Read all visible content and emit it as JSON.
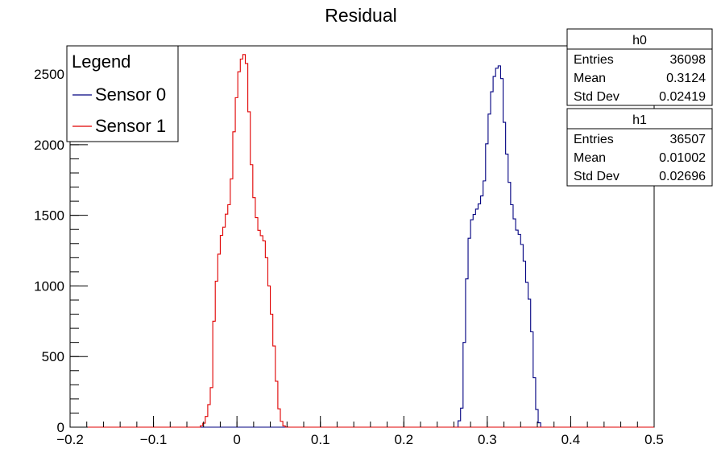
{
  "chart_data": {
    "type": "histogram",
    "title": "Residual",
    "xlabel": "",
    "ylabel": "",
    "xlim": [
      -0.2,
      0.5
    ],
    "ylim": [
      0,
      2700
    ],
    "x_ticks": [
      "−0.2",
      "−0.1",
      "0",
      "0.1",
      "0.2",
      "0.3",
      "0.4",
      "0.5"
    ],
    "y_ticks": [
      "0",
      "500",
      "1000",
      "1500",
      "2000",
      "2500"
    ],
    "grid": false,
    "legend": {
      "title": "Legend",
      "position": "top-left",
      "entries": [
        {
          "label": "Sensor 0",
          "color": "#000080"
        },
        {
          "label": "Sensor 1",
          "color": "#e00000"
        }
      ]
    },
    "series": [
      {
        "name": "h0",
        "color": "#000080",
        "peaks": [
          [
            0.265,
            0
          ],
          [
            0.27,
            150
          ],
          [
            0.272,
            500
          ],
          [
            0.274,
            900
          ],
          [
            0.276,
            1100
          ],
          [
            0.278,
            1300
          ],
          [
            0.28,
            1450
          ],
          [
            0.284,
            1500
          ],
          [
            0.288,
            1550
          ],
          [
            0.292,
            1600
          ],
          [
            0.296,
            1700
          ],
          [
            0.3,
            2050
          ],
          [
            0.303,
            2250
          ],
          [
            0.306,
            2400
          ],
          [
            0.309,
            2500
          ],
          [
            0.312,
            2550
          ],
          [
            0.315,
            2560
          ],
          [
            0.318,
            2450
          ],
          [
            0.321,
            2100
          ],
          [
            0.324,
            1900
          ],
          [
            0.327,
            1700
          ],
          [
            0.33,
            1550
          ],
          [
            0.335,
            1400
          ],
          [
            0.34,
            1350
          ],
          [
            0.344,
            1200
          ],
          [
            0.348,
            1000
          ],
          [
            0.352,
            850
          ],
          [
            0.355,
            500
          ],
          [
            0.358,
            200
          ],
          [
            0.361,
            50
          ],
          [
            0.365,
            0
          ]
        ],
        "stats": {
          "box_title": "h0",
          "entries": "36098",
          "mean": "0.3124",
          "std_dev": "0.02419"
        }
      },
      {
        "name": "h1",
        "color": "#e00000",
        "peaks": [
          [
            -0.045,
            0
          ],
          [
            -0.04,
            20
          ],
          [
            -0.035,
            100
          ],
          [
            -0.03,
            300
          ],
          [
            -0.028,
            700
          ],
          [
            -0.025,
            1000
          ],
          [
            -0.022,
            1200
          ],
          [
            -0.019,
            1350
          ],
          [
            -0.016,
            1400
          ],
          [
            -0.013,
            1500
          ],
          [
            -0.01,
            1550
          ],
          [
            -0.007,
            1700
          ],
          [
            -0.004,
            2050
          ],
          [
            -0.001,
            2300
          ],
          [
            0.002,
            2500
          ],
          [
            0.005,
            2600
          ],
          [
            0.008,
            2640
          ],
          [
            0.011,
            2630
          ],
          [
            0.014,
            2300
          ],
          [
            0.017,
            1900
          ],
          [
            0.02,
            1650
          ],
          [
            0.023,
            1500
          ],
          [
            0.026,
            1400
          ],
          [
            0.03,
            1350
          ],
          [
            0.034,
            1300
          ],
          [
            0.037,
            1100
          ],
          [
            0.04,
            900
          ],
          [
            0.043,
            700
          ],
          [
            0.046,
            450
          ],
          [
            0.049,
            200
          ],
          [
            0.052,
            60
          ],
          [
            0.056,
            10
          ],
          [
            0.06,
            0
          ]
        ],
        "stats": {
          "box_title": "h1",
          "entries": "36507",
          "mean": "0.01002",
          "std_dev": "0.02696"
        }
      }
    ],
    "stat_labels": {
      "entries": "Entries",
      "mean": "Mean",
      "std_dev": "Std Dev"
    }
  }
}
